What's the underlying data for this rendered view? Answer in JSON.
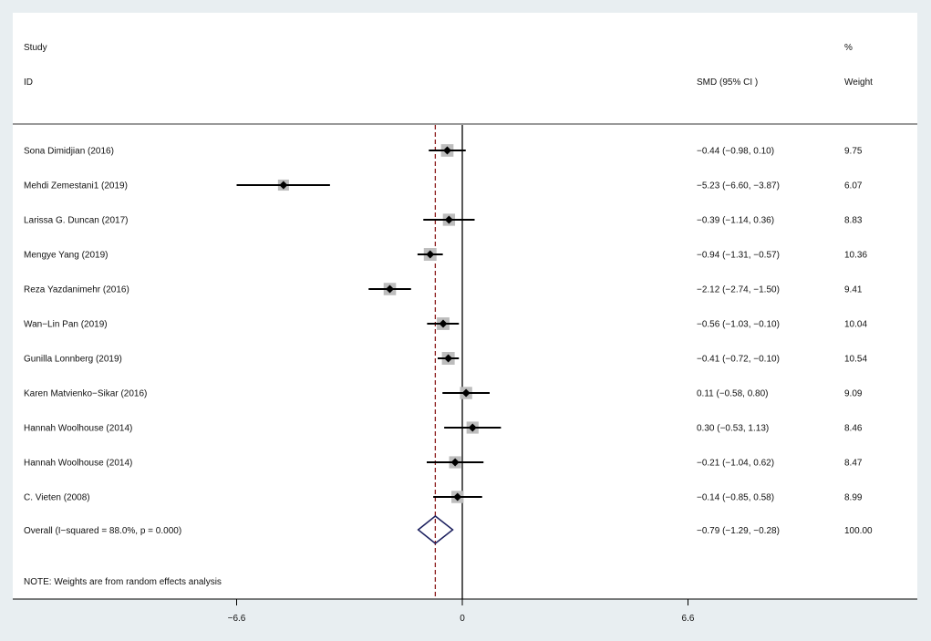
{
  "colors": {
    "background": "#e8eef1",
    "panel": "#ffffff",
    "marker_box": "#bdbdbd",
    "diamond": "#1b1f5e",
    "overall_line": "#8b1a1a",
    "axis": "#000000"
  },
  "chart_data": {
    "type": "forest",
    "header": {
      "study_line1": "Study",
      "study_line2": "ID",
      "effect_col": "SMD (95% CI )",
      "weight_line1": "%",
      "weight_line2": "Weight"
    },
    "studies": [
      {
        "label": "Sona Dimidjian (2016)",
        "smd": -0.44,
        "lower": -0.98,
        "upper": 0.1,
        "ci_text": "−0.44 (−0.98, 0.10)",
        "weight": 9.75,
        "weight_text": "9.75"
      },
      {
        "label": "Mehdi Zemestani1 (2019)",
        "smd": -5.23,
        "lower": -6.6,
        "upper": -3.87,
        "ci_text": "−5.23 (−6.60, −3.87)",
        "weight": 6.07,
        "weight_text": "6.07"
      },
      {
        "label": "Larissa G. Duncan (2017)",
        "smd": -0.39,
        "lower": -1.14,
        "upper": 0.36,
        "ci_text": "−0.39 (−1.14, 0.36)",
        "weight": 8.83,
        "weight_text": "8.83"
      },
      {
        "label": "Mengye Yang (2019)",
        "smd": -0.94,
        "lower": -1.31,
        "upper": -0.57,
        "ci_text": "−0.94 (−1.31, −0.57)",
        "weight": 10.36,
        "weight_text": "10.36"
      },
      {
        "label": "Reza Yazdanimehr (2016)",
        "smd": -2.12,
        "lower": -2.74,
        "upper": -1.5,
        "ci_text": "−2.12 (−2.74, −1.50)",
        "weight": 9.41,
        "weight_text": "9.41"
      },
      {
        "label": "Wan−Lin Pan (2019)",
        "smd": -0.56,
        "lower": -1.03,
        "upper": -0.1,
        "ci_text": "−0.56 (−1.03, −0.10)",
        "weight": 10.04,
        "weight_text": "10.04"
      },
      {
        "label": "Gunilla Lonnberg (2019)",
        "smd": -0.41,
        "lower": -0.72,
        "upper": -0.1,
        "ci_text": "−0.41 (−0.72, −0.10)",
        "weight": 10.54,
        "weight_text": "10.54"
      },
      {
        "label": "Karen Matvienko−Sikar (2016)",
        "smd": 0.11,
        "lower": -0.58,
        "upper": 0.8,
        "ci_text": "0.11 (−0.58, 0.80)",
        "weight": 9.09,
        "weight_text": "9.09"
      },
      {
        "label": "Hannah Woolhouse (2014)",
        "smd": 0.3,
        "lower": -0.53,
        "upper": 1.13,
        "ci_text": "0.30 (−0.53, 1.13)",
        "weight": 8.46,
        "weight_text": "8.46"
      },
      {
        "label": "Hannah Woolhouse (2014)",
        "smd": -0.21,
        "lower": -1.04,
        "upper": 0.62,
        "ci_text": "−0.21 (−1.04, 0.62)",
        "weight": 8.47,
        "weight_text": "8.47"
      },
      {
        "label": "C. Vieten (2008)",
        "smd": -0.14,
        "lower": -0.85,
        "upper": 0.58,
        "ci_text": "−0.14 (−0.85, 0.58)",
        "weight": 8.99,
        "weight_text": "8.99"
      }
    ],
    "overall": {
      "label": "Overall  (I−squared = 88.0%, p = 0.000)",
      "smd": -0.79,
      "lower": -1.29,
      "upper": -0.28,
      "ci_text": "−0.79 (−1.29, −0.28)",
      "weight": 100.0,
      "weight_text": "100.00"
    },
    "note": "NOTE: Weights are from random effects analysis",
    "x_ticks": [
      {
        "value": -6.6,
        "label": "−6.6"
      },
      {
        "value": 0,
        "label": "0"
      },
      {
        "value": 6.6,
        "label": "6.6"
      }
    ],
    "xlim": [
      -13.2,
      13.2
    ],
    "null_line": 0,
    "grid": false
  }
}
